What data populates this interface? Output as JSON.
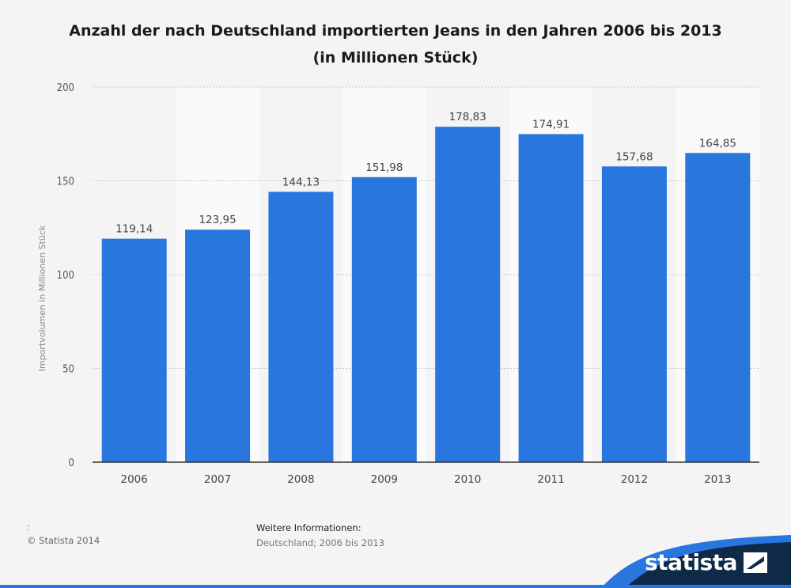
{
  "chart_data": {
    "type": "bar",
    "title": "Anzahl der nach Deutschland importierten Jeans in den Jahren 2006 bis 2013",
    "subtitle": "(in Millionen Stück)",
    "ylabel": "Importvolumen in Millionen Stück",
    "xlabel": "",
    "categories": [
      "2006",
      "2007",
      "2008",
      "2009",
      "2010",
      "2011",
      "2012",
      "2013"
    ],
    "values": [
      119.14,
      123.95,
      144.13,
      151.98,
      178.83,
      174.91,
      157.68,
      164.85
    ],
    "value_labels": [
      "119,14",
      "123,95",
      "144,13",
      "151,98",
      "178,83",
      "174,91",
      "157,68",
      "164,85"
    ],
    "ylim": [
      0,
      200
    ],
    "yticks": [
      "0",
      "50",
      "100",
      "150",
      "200"
    ],
    "grid": true,
    "bar_color": "#2976de"
  },
  "footer": {
    "colon": ":",
    "copyright": "© Statista 2014",
    "info_heading": "Weitere Informationen:",
    "info_text": "Deutschland; 2006 bis 2013"
  },
  "brand": {
    "name": "statista",
    "band_color": "#0e2a47",
    "accent_color": "#2976de"
  }
}
